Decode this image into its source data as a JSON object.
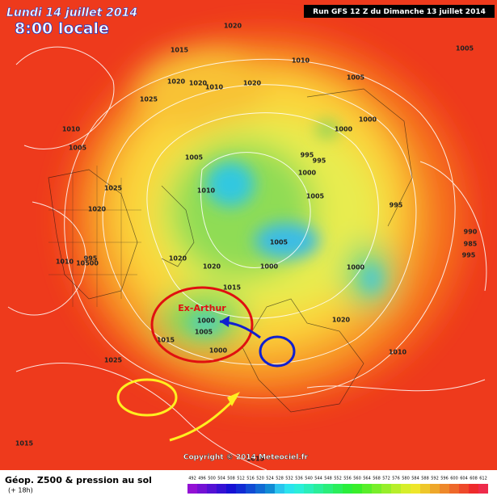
{
  "header": {
    "date": "Lundi 14 juillet 2014",
    "time": "8:00 locale",
    "run": "Run GFS 12 Z du Dimanche 13 juillet 2014"
  },
  "annotation": "Ex-Arthur",
  "copyright": "Copyright © 2014 Meteociel.fr",
  "footer": {
    "title": "Géop. Z500 & pression au sol",
    "lead": "(+ 18h)"
  },
  "legend_scale": [
    492,
    496,
    500,
    504,
    508,
    512,
    516,
    520,
    524,
    528,
    532,
    536,
    540,
    544,
    548,
    552,
    556,
    560,
    564,
    568,
    572,
    576,
    580,
    584,
    588,
    592,
    596,
    600,
    604,
    608,
    612
  ],
  "isobar_labels": [
    "1020",
    "1015",
    "1020",
    "1020",
    "1010",
    "1010",
    "1020",
    "1025",
    "1010",
    "1005",
    "1005",
    "1000",
    "1000",
    "1005",
    "995",
    "995",
    "1000",
    "1005",
    "1025",
    "1020",
    "1010",
    "1005",
    "1000",
    "1020",
    "1020",
    "995",
    "990",
    "985",
    "995",
    "1000",
    "1015",
    "1020",
    "1000",
    "1005",
    "1000",
    "1015",
    "1025",
    "1010",
    "1015",
    "1015",
    "1005",
    "1010",
    "10500",
    "995"
  ]
}
